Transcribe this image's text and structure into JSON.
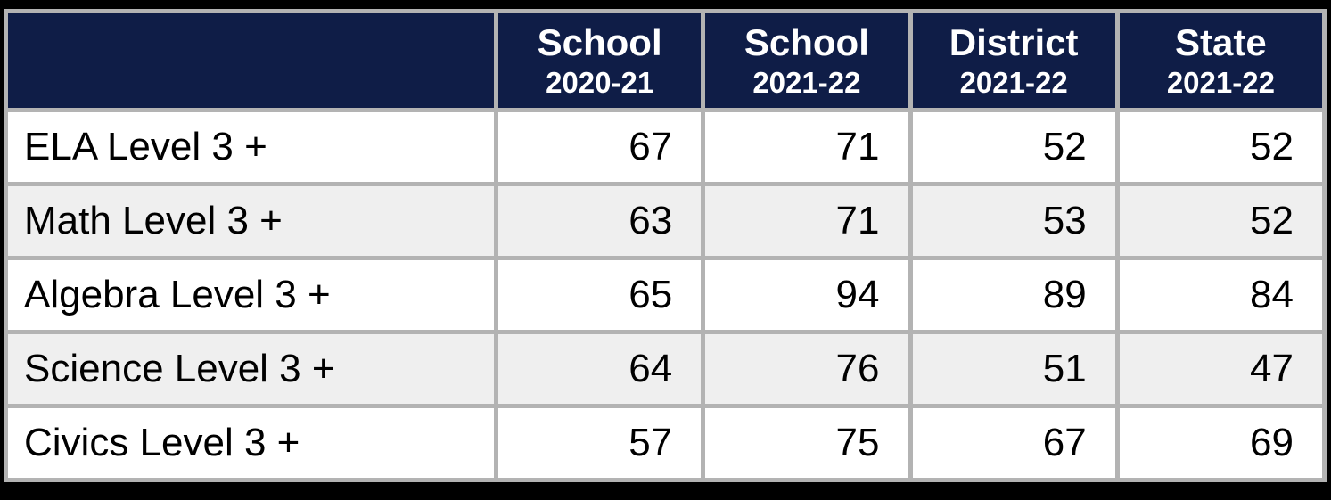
{
  "colors": {
    "header_bg": "#0f1d47",
    "header_text": "#ffffff",
    "row_bg": "#ffffff",
    "row_alt_bg": "#efefef",
    "grid_line": "#b3b3b3",
    "page_margin": "#000000",
    "body_text": "#000000"
  },
  "chart_data": {
    "type": "table",
    "header": {
      "corner": "",
      "columns": [
        {
          "source": "School",
          "year": "2020-21"
        },
        {
          "source": "School",
          "year": "2021-22"
        },
        {
          "source": "District",
          "year": "2021-22"
        },
        {
          "source": "State",
          "year": "2021-22"
        }
      ]
    },
    "rows": [
      {
        "label": "ELA Level 3 +",
        "values": [
          67,
          71,
          52,
          52
        ]
      },
      {
        "label": "Math Level 3 +",
        "values": [
          63,
          71,
          53,
          52
        ]
      },
      {
        "label": "Algebra Level 3 +",
        "values": [
          65,
          94,
          89,
          84
        ]
      },
      {
        "label": "Science Level 3 +",
        "values": [
          64,
          76,
          51,
          47
        ]
      },
      {
        "label": "Civics Level 3 +",
        "values": [
          57,
          75,
          67,
          69
        ]
      }
    ]
  }
}
